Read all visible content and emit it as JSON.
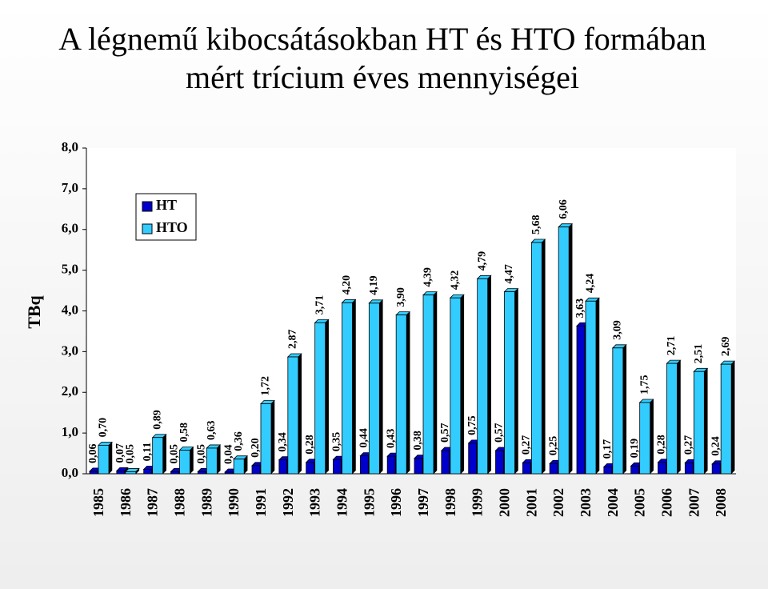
{
  "chart_data": {
    "type": "bar",
    "title": "A légnemű kibocsátásokban HT és HTO formában",
    "subtitle": "mért trícium éves mennyiségei",
    "y_label": "TBq",
    "categories": [
      "1985",
      "1986",
      "1987",
      "1988",
      "1989",
      "1990",
      "1991",
      "1992",
      "1993",
      "1994",
      "1995",
      "1996",
      "1997",
      "1998",
      "1999",
      "2000",
      "2001",
      "2002",
      "2003",
      "2004",
      "2005",
      "2006",
      "2007",
      "2008"
    ],
    "series": [
      {
        "name": "HT",
        "color": "#0000cc",
        "values": [
          0.06,
          0.07,
          0.11,
          0.05,
          0.05,
          0.04,
          0.2,
          0.34,
          0.28,
          0.35,
          0.44,
          0.43,
          0.38,
          0.57,
          0.75,
          0.57,
          0.27,
          0.25,
          3.63,
          0.17,
          0.19,
          0.28,
          0.27,
          0.24
        ],
        "value_labels": [
          "0,06",
          "0,07",
          "0,11",
          "0,05",
          "0,05",
          "0,04",
          "0,20",
          "0,34",
          "0,28",
          "0,35",
          "0,44",
          "0,43",
          "0,38",
          "0,57",
          "0,75",
          "0,57",
          "0,27",
          "0,25",
          "3,63",
          "0,17",
          "0,19",
          "0,28",
          "0,27",
          "0,24"
        ]
      },
      {
        "name": "HTO",
        "color": "#33ccff",
        "values": [
          0.7,
          0.05,
          0.89,
          0.58,
          0.63,
          0.36,
          1.72,
          2.87,
          3.71,
          4.2,
          4.19,
          3.9,
          4.39,
          4.32,
          4.79,
          4.47,
          5.68,
          6.06,
          4.24,
          3.09,
          1.75,
          2.71,
          2.51,
          2.69
        ],
        "value_labels": [
          "0,70",
          "0,05",
          "0,89",
          "0,58",
          "0,63",
          "0,36",
          "1,72",
          "2,87",
          "3,71",
          "4,20",
          "4,19",
          "3,90",
          "4,39",
          "4,32",
          "4,79",
          "4,47",
          "5,68",
          "6,06",
          "4,24",
          "3,09",
          "1,75",
          "2,71",
          "2,51",
          "2,69"
        ]
      }
    ],
    "ylim": [
      0,
      8
    ],
    "yticks": [
      {
        "value": 0,
        "label": "0,0"
      },
      {
        "value": 1,
        "label": "1,0"
      },
      {
        "value": 2,
        "label": "2,0"
      },
      {
        "value": 3,
        "label": "3,0"
      },
      {
        "value": 4,
        "label": "4,0"
      },
      {
        "value": 5,
        "label": "5,0"
      },
      {
        "value": 6,
        "label": "6,0"
      },
      {
        "value": 7,
        "label": "7,0"
      },
      {
        "value": 8,
        "label": "8,0"
      }
    ],
    "legend": "upper left"
  }
}
